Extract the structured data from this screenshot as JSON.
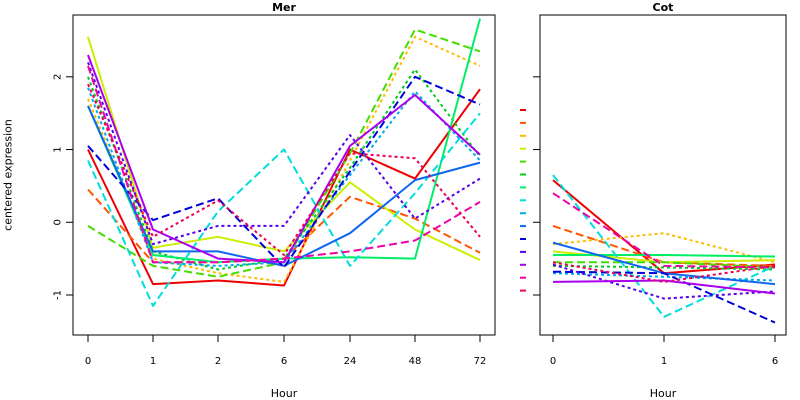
{
  "chart_data": [
    {
      "type": "line",
      "title": "Mer",
      "xlabel": "Hour",
      "ylabel": "centered expression",
      "categories": [
        "0",
        "1",
        "2",
        "6",
        "24",
        "48",
        "72"
      ],
      "yticks": [
        -1,
        0,
        1,
        2
      ],
      "ylim": [
        -1.55,
        2.85
      ],
      "series": [
        {
          "color": "#ee0000",
          "dash": "solid",
          "values": [
            1.0,
            -0.85,
            -0.8,
            -0.87,
            1.0,
            0.6,
            1.83
          ]
        },
        {
          "color": "#ff5500",
          "dash": "dashed",
          "values": [
            0.45,
            -0.55,
            -0.55,
            -0.5,
            0.35,
            0.05,
            -0.42
          ]
        },
        {
          "color": "#ffbb00",
          "dash": "dotted",
          "values": [
            1.7,
            -0.5,
            -0.7,
            -0.82,
            0.85,
            2.55,
            2.15
          ]
        },
        {
          "color": "#ccee00",
          "dash": "solid",
          "values": [
            2.55,
            -0.35,
            -0.2,
            -0.4,
            0.55,
            -0.1,
            -0.52
          ]
        },
        {
          "color": "#44dd00",
          "dash": "dashed",
          "values": [
            -0.05,
            -0.6,
            -0.75,
            -0.55,
            0.95,
            2.65,
            2.35
          ]
        },
        {
          "color": "#00cc22",
          "dash": "dotted",
          "values": [
            2.0,
            -0.4,
            -0.65,
            -0.5,
            0.75,
            2.1,
            0.9
          ]
        },
        {
          "color": "#00ee66",
          "dash": "solid",
          "values": [
            1.6,
            -0.45,
            -0.55,
            -0.5,
            -0.48,
            -0.5,
            2.8
          ]
        },
        {
          "color": "#00dddd",
          "dash": "dashed",
          "values": [
            0.85,
            -1.15,
            0.15,
            1.0,
            -0.6,
            0.4,
            1.5
          ]
        },
        {
          "color": "#00aaee",
          "dash": "dotted",
          "values": [
            1.85,
            -0.55,
            -0.6,
            -0.55,
            0.65,
            1.8,
            0.85
          ]
        },
        {
          "color": "#1166ee",
          "dash": "solid",
          "values": [
            1.6,
            -0.4,
            -0.4,
            -0.6,
            -0.15,
            0.58,
            0.82
          ]
        },
        {
          "color": "#0000dd",
          "dash": "dashed",
          "values": [
            1.05,
            0.03,
            0.33,
            -0.62,
            0.7,
            2.0,
            1.62
          ]
        },
        {
          "color": "#5500ee",
          "dash": "dotted",
          "values": [
            2.2,
            -0.3,
            -0.05,
            -0.05,
            1.2,
            0.05,
            0.6
          ]
        },
        {
          "color": "#aa00ee",
          "dash": "solid",
          "values": [
            2.3,
            -0.1,
            -0.5,
            -0.55,
            1.05,
            1.75,
            0.93
          ]
        },
        {
          "color": "#ee00aa",
          "dash": "dashed",
          "values": [
            2.15,
            -0.55,
            -0.55,
            -0.5,
            -0.4,
            -0.25,
            0.28
          ]
        },
        {
          "color": "#ee0055",
          "dash": "dotted",
          "values": [
            1.9,
            -0.2,
            0.3,
            -0.45,
            0.95,
            0.88,
            -0.2
          ]
        }
      ]
    },
    {
      "type": "line",
      "title": "Cot",
      "xlabel": "Hour",
      "categories": [
        "0",
        "1",
        "6"
      ],
      "yticks": [
        -1,
        0,
        1,
        2
      ],
      "ylim": [
        -1.55,
        2.85
      ],
      "series": [
        {
          "color": "#ee0000",
          "dash": "solid",
          "values": [
            0.58,
            -0.7,
            -0.58
          ]
        },
        {
          "color": "#ff5500",
          "dash": "dashed",
          "values": [
            -0.05,
            -0.55,
            -0.6
          ]
        },
        {
          "color": "#ffbb00",
          "dash": "dotted",
          "values": [
            -0.3,
            -0.15,
            -0.55
          ]
        },
        {
          "color": "#ccee00",
          "dash": "solid",
          "values": [
            -0.4,
            -0.55,
            -0.52
          ]
        },
        {
          "color": "#44dd00",
          "dash": "dashed",
          "values": [
            -0.55,
            -0.55,
            -0.62
          ]
        },
        {
          "color": "#00cc22",
          "dash": "dotted",
          "values": [
            -0.6,
            -0.62,
            -0.65
          ]
        },
        {
          "color": "#00ee66",
          "dash": "solid",
          "values": [
            -0.45,
            -0.45,
            -0.47
          ]
        },
        {
          "color": "#00dddd",
          "dash": "dashed",
          "values": [
            0.65,
            -1.3,
            -0.6
          ]
        },
        {
          "color": "#00aaee",
          "dash": "dotted",
          "values": [
            -0.7,
            -0.75,
            -0.8
          ]
        },
        {
          "color": "#1166ee",
          "dash": "solid",
          "values": [
            -0.28,
            -0.7,
            -0.85
          ]
        },
        {
          "color": "#0000dd",
          "dash": "dashed",
          "values": [
            -0.68,
            -0.7,
            -1.38
          ]
        },
        {
          "color": "#5500ee",
          "dash": "dotted",
          "values": [
            -0.58,
            -1.05,
            -0.95
          ]
        },
        {
          "color": "#aa00ee",
          "dash": "solid",
          "values": [
            -0.82,
            -0.8,
            -0.98
          ]
        },
        {
          "color": "#ee00aa",
          "dash": "dashed",
          "values": [
            0.4,
            -0.6,
            -0.62
          ]
        },
        {
          "color": "#ee0055",
          "dash": "dotted",
          "values": [
            -0.55,
            -0.82,
            -0.6
          ]
        }
      ]
    }
  ]
}
